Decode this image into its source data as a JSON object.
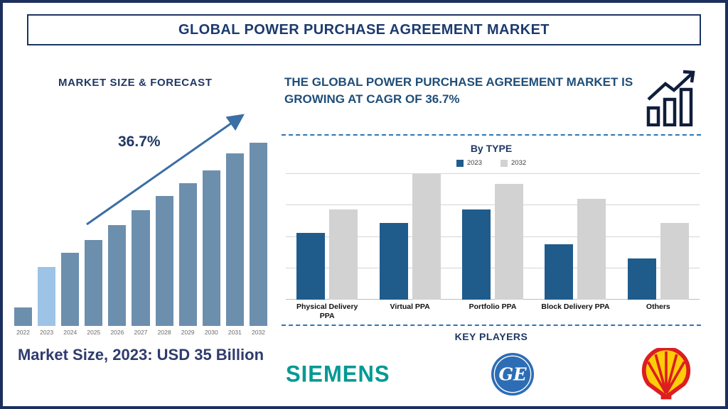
{
  "title": "GLOBAL POWER PURCHASE AGREEMENT MARKET",
  "left_panel": {
    "heading": "MARKET SIZE & FORECAST",
    "growth_label": "36.7%",
    "caption": "Market Size, 2023: USD 35 Billion"
  },
  "right_panel": {
    "headline": "THE GLOBAL POWER PURCHASE AGREEMENT MARKET IS GROWING AT CAGR OF 36.7%",
    "by_type_heading": "By TYPE",
    "key_players_heading": "KEY PLAYERS"
  },
  "key_players": {
    "siemens_text": "SIEMENS",
    "ge_text": "GE"
  },
  "colors": {
    "navy": "#1c3a6e",
    "headline_blue": "#1f4e79",
    "steel_bar": "#6d8fae",
    "highlight_bar": "#9dc3e6",
    "series_2023": "#1f5c8c",
    "series_2032": "#d2d2d2",
    "arrow": "#3a6ea5",
    "dashed_divider": "#2e75b6",
    "siemens_teal": "#009a93",
    "ge_blue": "#2d6db5",
    "shell_red": "#dd1d21",
    "shell_yellow": "#fbce07"
  },
  "chart_data": [
    {
      "type": "bar",
      "title": "MARKET SIZE & FORECAST",
      "categories": [
        "2022",
        "2023",
        "2024",
        "2025",
        "2026",
        "2027",
        "2028",
        "2029",
        "2030",
        "2031",
        "2032"
      ],
      "values": [
        10,
        32,
        40,
        47,
        55,
        63,
        71,
        78,
        85,
        94,
        100
      ],
      "value_units": "relative height, no axis scale shown",
      "highlight_index": 1,
      "bar_color": "#6d8fae",
      "highlight_color": "#9dc3e6",
      "annotations": [
        "36.7% CAGR arrow rising left-to-right"
      ],
      "xlabel": "",
      "ylabel": "",
      "grid": false
    },
    {
      "type": "bar",
      "title": "By TYPE",
      "categories": [
        "Physical Delivery PPA",
        "Virtual PPA",
        "Portfolio PPA",
        "Block Delivery PPA",
        "Others"
      ],
      "series": [
        {
          "name": "2023",
          "color": "#1f5c8c",
          "values": [
            53,
            61,
            72,
            44,
            33
          ]
        },
        {
          "name": "2032",
          "color": "#d2d2d2",
          "values": [
            72,
            100,
            92,
            80,
            61
          ]
        }
      ],
      "value_units": "relative height, no axis scale shown",
      "legend_position": "top",
      "grid": true,
      "xlabel": "",
      "ylabel": ""
    }
  ]
}
